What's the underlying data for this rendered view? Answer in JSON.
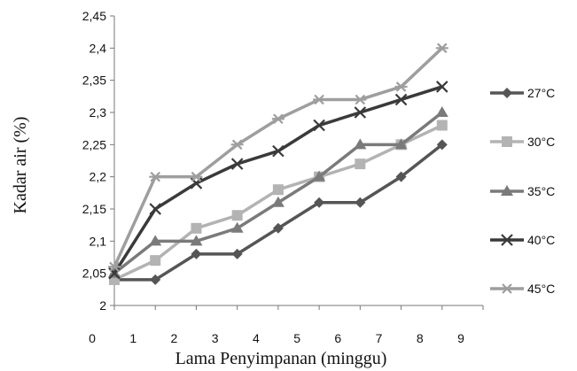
{
  "chart_data": {
    "type": "line",
    "title": "",
    "xlabel": "Lama Penyimpanan (minggu)",
    "ylabel": "Kadar air  (%)",
    "xlim": [
      0,
      9
    ],
    "ylim": [
      2,
      2.45
    ],
    "x_ticks": [
      "0",
      "1",
      "2",
      "3",
      "4",
      "5",
      "6",
      "7",
      "8",
      "9"
    ],
    "y_ticks": [
      "2",
      "2,05",
      "2,1",
      "2,15",
      "2,2",
      "2,25",
      "2,3",
      "2,35",
      "2,4",
      "2,45"
    ],
    "grid": false,
    "legend_position": "right",
    "x": [
      0,
      1,
      2,
      3,
      4,
      5,
      6,
      7,
      8
    ],
    "series": [
      {
        "name": "27°C",
        "marker": "diamond",
        "color": "#555555",
        "values": [
          2.04,
          2.04,
          2.08,
          2.08,
          2.12,
          2.16,
          2.16,
          2.2,
          2.25
        ]
      },
      {
        "name": "30°C",
        "marker": "square",
        "color": "#b3b3b3",
        "values": [
          2.04,
          2.07,
          2.12,
          2.14,
          2.18,
          2.2,
          2.22,
          2.25,
          2.28
        ]
      },
      {
        "name": "35°C",
        "marker": "triangle",
        "color": "#7a7a7a",
        "values": [
          2.05,
          2.1,
          2.1,
          2.12,
          2.16,
          2.2,
          2.25,
          2.25,
          2.3
        ]
      },
      {
        "name": "40°C",
        "marker": "x",
        "color": "#3a3a3a",
        "values": [
          2.05,
          2.15,
          2.19,
          2.22,
          2.24,
          2.28,
          2.3,
          2.32,
          2.34
        ]
      },
      {
        "name": "45°C",
        "marker": "star",
        "color": "#9e9e9e",
        "values": [
          2.06,
          2.2,
          2.2,
          2.25,
          2.29,
          2.32,
          2.32,
          2.34,
          2.4
        ]
      }
    ]
  }
}
